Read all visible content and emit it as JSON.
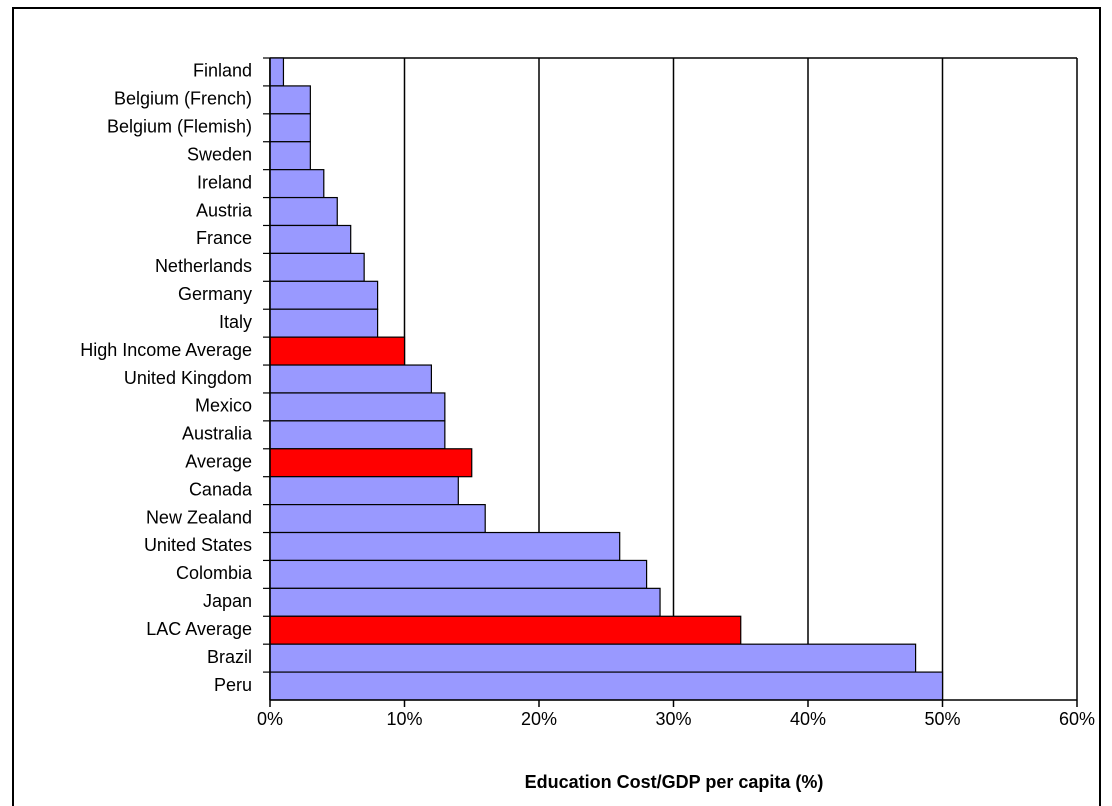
{
  "chart_data": {
    "type": "bar",
    "orientation": "horizontal",
    "x_label": "Education Cost/GDP per capita (%)",
    "categories": [
      "Finland",
      "Belgium (French)",
      "Belgium (Flemish)",
      "Sweden",
      "Ireland",
      "Austria",
      "France",
      "Netherlands",
      "Germany",
      "Italy",
      "High Income Average",
      "United Kingdom",
      "Mexico",
      "Australia",
      "Average",
      "Canada",
      "New Zealand",
      "United States",
      "Colombia",
      "Japan",
      "LAC Average",
      "Brazil",
      "Peru"
    ],
    "values": [
      1,
      3,
      3,
      3,
      4,
      5,
      6,
      7,
      8,
      8,
      10,
      12,
      13,
      13,
      15,
      14,
      16,
      26,
      28,
      29,
      35,
      48,
      50
    ],
    "colors": [
      "#9999ff",
      "#9999ff",
      "#9999ff",
      "#9999ff",
      "#9999ff",
      "#9999ff",
      "#9999ff",
      "#9999ff",
      "#9999ff",
      "#9999ff",
      "#ff0000",
      "#9999ff",
      "#9999ff",
      "#9999ff",
      "#ff0000",
      "#9999ff",
      "#9999ff",
      "#9999ff",
      "#9999ff",
      "#9999ff",
      "#ff0000",
      "#9999ff",
      "#9999ff"
    ],
    "xlim": [
      0,
      60
    ],
    "xticks": [
      {
        "value": 0,
        "label": "0%"
      },
      {
        "value": 10,
        "label": "10%"
      },
      {
        "value": 20,
        "label": "20%"
      },
      {
        "value": 30,
        "label": "30%"
      },
      {
        "value": 40,
        "label": "40%"
      },
      {
        "value": 50,
        "label": "50%"
      },
      {
        "value": 60,
        "label": "60%"
      }
    ],
    "grid": true
  }
}
